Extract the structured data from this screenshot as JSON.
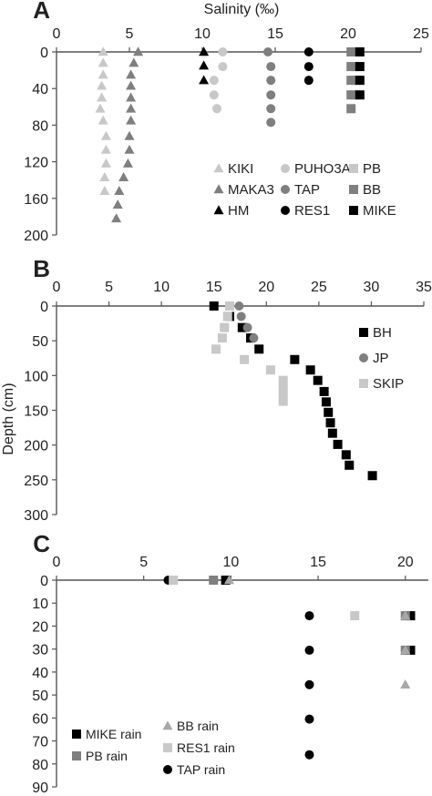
{
  "chart_data": [
    {
      "panel": "A",
      "type": "scatter",
      "title": "Salinity (‰)",
      "xlabel": "Salinity (‰)",
      "ylabel": "",
      "xlim": [
        0,
        25
      ],
      "ylim": [
        200,
        0
      ],
      "x_ticks": [
        0,
        5,
        10,
        15,
        20,
        25
      ],
      "y_ticks": [
        0,
        40,
        80,
        120,
        160,
        200
      ],
      "legend_position": "bottom-right",
      "series": [
        {
          "name": "KIKI",
          "marker": "triangle",
          "color": "#c8c8c8",
          "points": [
            [
              3.2,
              0
            ],
            [
              3.2,
              12
            ],
            [
              3.2,
              25
            ],
            [
              3.1,
              37
            ],
            [
              3.1,
              50
            ],
            [
              3.0,
              62
            ],
            [
              3.2,
              75
            ],
            [
              3.4,
              92
            ],
            [
              3.4,
              107
            ],
            [
              3.4,
              122
            ],
            [
              3.3,
              137
            ],
            [
              3.3,
              152
            ]
          ]
        },
        {
          "name": "MAKA3",
          "marker": "triangle",
          "color": "#7f7f7f",
          "points": [
            [
              5.6,
              0
            ],
            [
              5.3,
              12
            ],
            [
              5.1,
              25
            ],
            [
              5.1,
              37
            ],
            [
              5.1,
              50
            ],
            [
              5.1,
              62
            ],
            [
              5.1,
              75
            ],
            [
              5.0,
              92
            ],
            [
              5.0,
              107
            ],
            [
              4.9,
              122
            ],
            [
              4.6,
              137
            ],
            [
              4.3,
              152
            ],
            [
              4.2,
              167
            ],
            [
              4.1,
              182
            ]
          ]
        },
        {
          "name": "HM",
          "marker": "triangle",
          "color": "#000000",
          "points": [
            [
              10.1,
              0
            ],
            [
              10.1,
              15
            ],
            [
              10.1,
              31
            ]
          ]
        },
        {
          "name": "PUHO3A",
          "marker": "circle",
          "color": "#c8c8c8",
          "points": [
            [
              11.4,
              0
            ],
            [
              11.4,
              16
            ],
            [
              10.8,
              31
            ],
            [
              10.8,
              47
            ],
            [
              11.0,
              62
            ]
          ]
        },
        {
          "name": "TAP",
          "marker": "circle",
          "color": "#7f7f7f",
          "points": [
            [
              14.5,
              0
            ],
            [
              14.7,
              16
            ],
            [
              14.7,
              31
            ],
            [
              14.7,
              47
            ],
            [
              14.7,
              62
            ],
            [
              14.7,
              77
            ]
          ]
        },
        {
          "name": "RES1",
          "marker": "circle",
          "color": "#000000",
          "points": [
            [
              17.3,
              0
            ],
            [
              17.3,
              16
            ],
            [
              17.3,
              31
            ]
          ]
        },
        {
          "name": "PB",
          "marker": "square",
          "color": "#c8c8c8",
          "points": [
            [
              20.5,
              0
            ],
            [
              20.5,
              16
            ],
            [
              20.5,
              31
            ],
            [
              20.5,
              47
            ]
          ]
        },
        {
          "name": "BB",
          "marker": "square",
          "color": "#7f7f7f",
          "points": [
            [
              20.2,
              0
            ],
            [
              20.2,
              16
            ],
            [
              20.2,
              31
            ],
            [
              20.2,
              47
            ],
            [
              20.2,
              62
            ]
          ]
        },
        {
          "name": "MIKE",
          "marker": "square",
          "color": "#000000",
          "points": [
            [
              20.8,
              0
            ],
            [
              20.8,
              16
            ],
            [
              20.8,
              31
            ],
            [
              20.8,
              47
            ]
          ]
        }
      ]
    },
    {
      "panel": "B",
      "type": "scatter",
      "title": "",
      "xlabel": "",
      "ylabel": "Depth (cm)",
      "xlim": [
        0,
        35
      ],
      "ylim": [
        300,
        0
      ],
      "x_ticks": [
        0,
        5,
        10,
        15,
        20,
        25,
        30,
        35
      ],
      "y_ticks": [
        0,
        50,
        100,
        150,
        200,
        250,
        300
      ],
      "legend_position": "right",
      "series": [
        {
          "name": "BH",
          "marker": "square",
          "color": "#000000",
          "points": [
            [
              15.0,
              0
            ],
            [
              16.5,
              15
            ],
            [
              17.7,
              31
            ],
            [
              18.5,
              46
            ],
            [
              19.3,
              62
            ],
            [
              22.7,
              77
            ],
            [
              24.2,
              92
            ],
            [
              24.9,
              107
            ],
            [
              25.5,
              123
            ],
            [
              25.7,
              138
            ],
            [
              25.9,
              153
            ],
            [
              26.1,
              168
            ],
            [
              26.3,
              183
            ],
            [
              26.8,
              199
            ],
            [
              27.6,
              214
            ],
            [
              27.9,
              229
            ],
            [
              30.1,
              244
            ]
          ]
        },
        {
          "name": "JP",
          "marker": "circle",
          "color": "#7f7f7f",
          "points": [
            [
              17.4,
              0
            ],
            [
              17.6,
              15
            ],
            [
              18.2,
              31
            ],
            [
              18.8,
              46
            ]
          ]
        },
        {
          "name": "SKIP",
          "marker": "square",
          "color": "#c8c8c8",
          "points": [
            [
              16.5,
              0
            ],
            [
              16.3,
              15
            ],
            [
              16.0,
              31
            ],
            [
              15.8,
              46
            ],
            [
              15.2,
              62
            ],
            [
              17.9,
              77
            ],
            [
              20.4,
              92
            ],
            [
              21.6,
              107
            ],
            [
              21.6,
              117
            ],
            [
              21.6,
              127
            ],
            [
              21.6,
              137
            ]
          ]
        }
      ]
    },
    {
      "panel": "C",
      "type": "scatter",
      "title": "",
      "xlabel": "",
      "ylabel": "",
      "xlim": [
        0,
        22
      ],
      "ylim": [
        90,
        0
      ],
      "x_ticks": [
        0,
        5,
        10,
        15,
        20
      ],
      "y_ticks": [
        0,
        10,
        20,
        30,
        40,
        50,
        60,
        70,
        80,
        90
      ],
      "legend_position": "bottom-left",
      "series": [
        {
          "name": "MIKE rain",
          "marker": "square",
          "color": "#000000",
          "points": [
            [
              9.7,
              0
            ],
            [
              20.3,
              15.5
            ],
            [
              20.3,
              30.5
            ]
          ]
        },
        {
          "name": "PB rain",
          "marker": "square",
          "color": "#7f7f7f",
          "points": [
            [
              9.0,
              0
            ],
            [
              20.0,
              15.5
            ],
            [
              20.0,
              30.5
            ]
          ]
        },
        {
          "name": "TAP rain",
          "marker": "circle",
          "color": "#000000",
          "points": [
            [
              6.4,
              0
            ],
            [
              14.5,
              15.5
            ],
            [
              14.5,
              30.5
            ],
            [
              14.5,
              45.5
            ],
            [
              14.5,
              60.5
            ],
            [
              14.5,
              76
            ]
          ]
        },
        {
          "name": "BB rain",
          "marker": "triangle",
          "color": "#a8a8a8",
          "points": [
            [
              9.9,
              0
            ],
            [
              20.0,
              15.5
            ],
            [
              20.0,
              30.5
            ],
            [
              20.0,
              45.5
            ]
          ]
        },
        {
          "name": "RES1 rain",
          "marker": "square",
          "color": "#c8c8c8",
          "points": [
            [
              6.7,
              0
            ],
            [
              17.1,
              15.5
            ]
          ]
        }
      ]
    }
  ],
  "panel_letters": [
    "A",
    "B",
    "C"
  ]
}
